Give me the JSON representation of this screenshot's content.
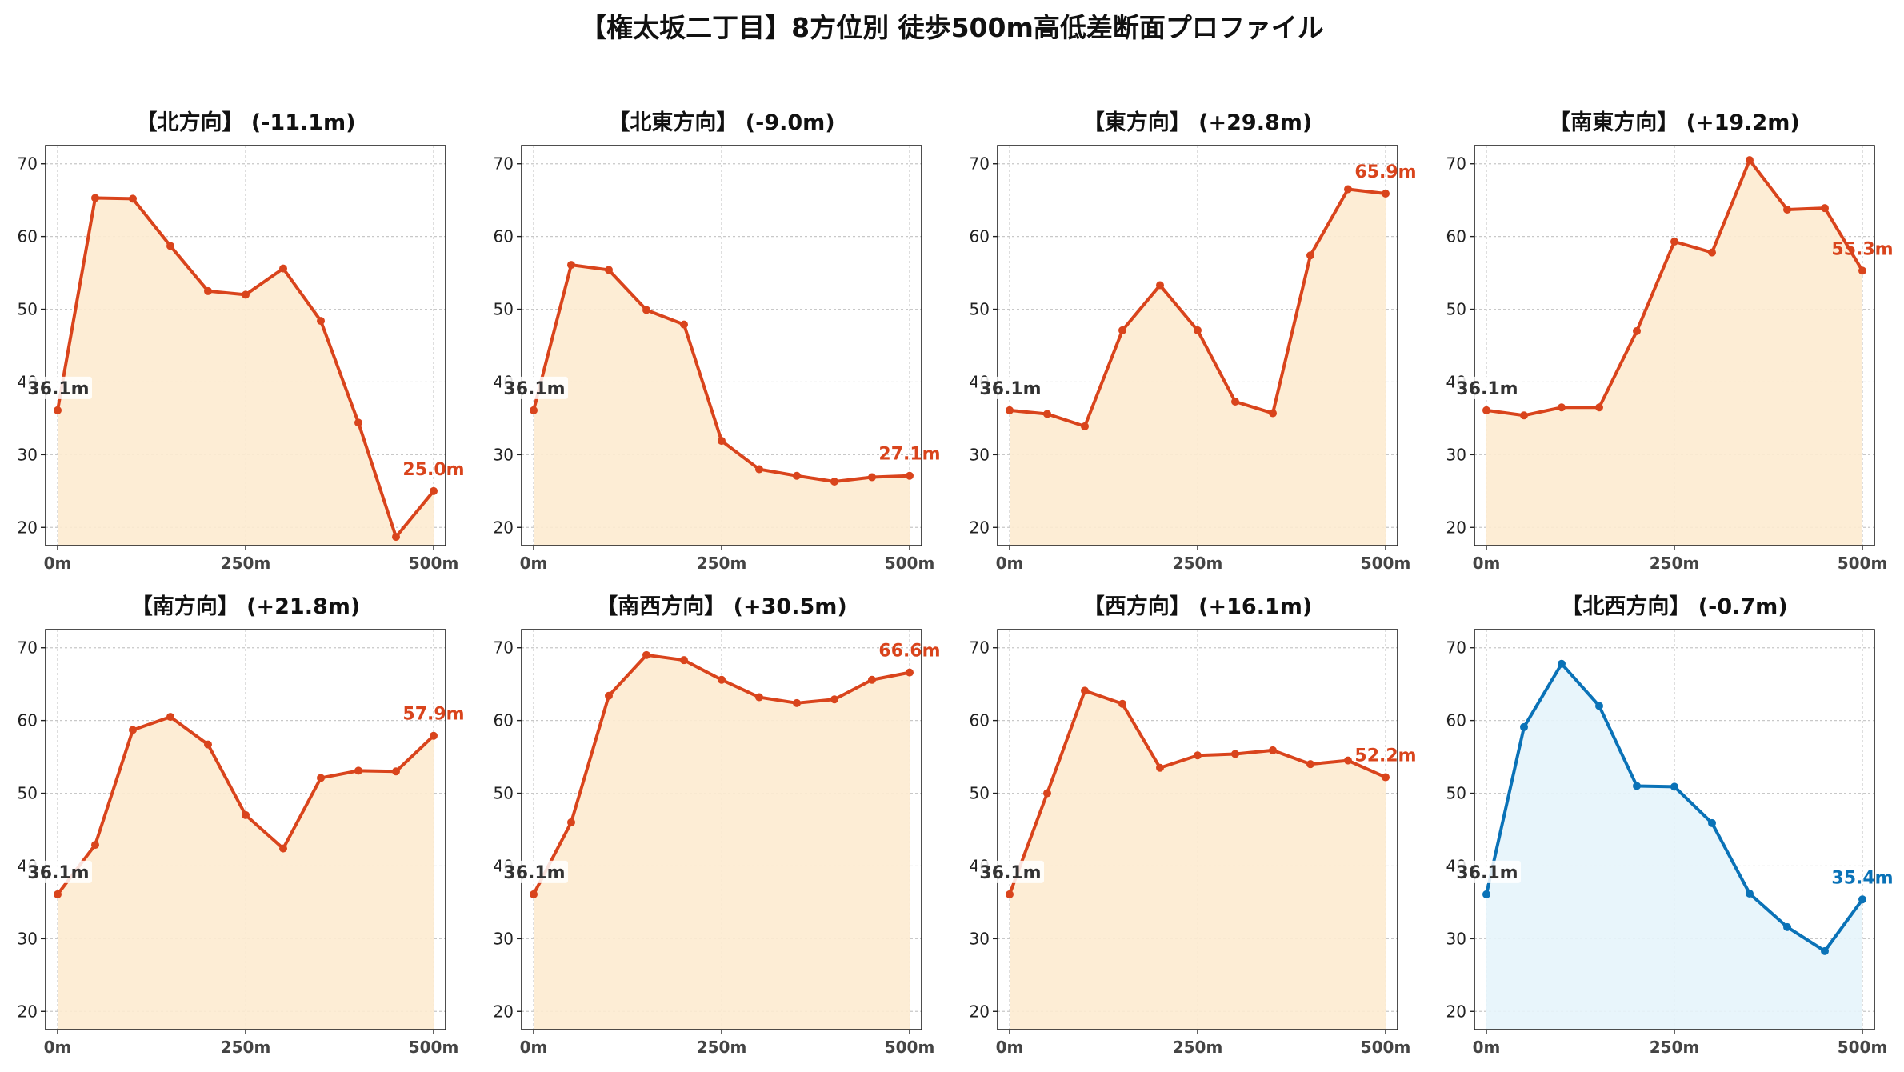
{
  "title": "【権太坂二丁目】8方位別 徒歩500m高低差断面プロファイル",
  "colors": {
    "descent_line": "#d9441c",
    "descent_fill": "#fdebd0",
    "ascent_line": "#0a72b7",
    "ascent_fill": "#e6f4fb",
    "start_label": "#333333",
    "grid": "#c8c8c8",
    "axis": "#222222"
  },
  "chart_data": [
    {
      "type": "area",
      "title": "【北方向】 (-11.1m)",
      "x": [
        0,
        50,
        100,
        150,
        200,
        250,
        300,
        350,
        400,
        450,
        500
      ],
      "y": [
        36.1,
        65.3,
        65.2,
        58.7,
        52.5,
        52.0,
        55.6,
        48.4,
        34.4,
        18.7,
        25.0
      ],
      "xticks": [
        "0m",
        "250m",
        "500m"
      ],
      "yticks": [
        "20",
        "30",
        "40",
        "50",
        "60",
        "70"
      ],
      "xlim": [
        0,
        500
      ],
      "ylim": [
        17.5,
        72.5
      ],
      "start_label": "36.1m",
      "end_label": "25.0m",
      "style": "orange",
      "grid": true
    },
    {
      "type": "area",
      "title": "【北東方向】 (-9.0m)",
      "x": [
        0,
        50,
        100,
        150,
        200,
        250,
        300,
        350,
        400,
        450,
        500
      ],
      "y": [
        36.1,
        56.1,
        55.4,
        49.9,
        47.9,
        31.9,
        28.0,
        27.1,
        26.3,
        26.9,
        27.1
      ],
      "xticks": [
        "0m",
        "250m",
        "500m"
      ],
      "yticks": [
        "20",
        "30",
        "40",
        "50",
        "60",
        "70"
      ],
      "xlim": [
        0,
        500
      ],
      "ylim": [
        17.5,
        72.5
      ],
      "start_label": "36.1m",
      "end_label": "27.1m",
      "style": "orange",
      "grid": true
    },
    {
      "type": "area",
      "title": "【東方向】 (+29.8m)",
      "x": [
        0,
        50,
        100,
        150,
        200,
        250,
        300,
        350,
        400,
        450,
        500
      ],
      "y": [
        36.1,
        35.6,
        33.9,
        47.1,
        53.3,
        47.1,
        37.3,
        35.7,
        57.4,
        66.5,
        65.9
      ],
      "xticks": [
        "0m",
        "250m",
        "500m"
      ],
      "yticks": [
        "20",
        "30",
        "40",
        "50",
        "60",
        "70"
      ],
      "xlim": [
        0,
        500
      ],
      "ylim": [
        17.5,
        72.5
      ],
      "start_label": "36.1m",
      "end_label": "65.9m",
      "style": "orange",
      "grid": true
    },
    {
      "type": "area",
      "title": "【南東方向】 (+19.2m)",
      "x": [
        0,
        50,
        100,
        150,
        200,
        250,
        300,
        350,
        400,
        450,
        500
      ],
      "y": [
        36.1,
        35.4,
        36.5,
        36.5,
        47.0,
        59.3,
        57.8,
        70.5,
        63.7,
        63.9,
        55.3
      ],
      "xticks": [
        "0m",
        "250m",
        "500m"
      ],
      "yticks": [
        "20",
        "30",
        "40",
        "50",
        "60",
        "70"
      ],
      "xlim": [
        0,
        500
      ],
      "ylim": [
        17.5,
        72.5
      ],
      "start_label": "36.1m",
      "end_label": "55.3m",
      "style": "orange",
      "grid": true
    },
    {
      "type": "area",
      "title": "【南方向】 (+21.8m)",
      "x": [
        0,
        50,
        100,
        150,
        200,
        250,
        300,
        350,
        400,
        450,
        500
      ],
      "y": [
        36.1,
        42.9,
        58.7,
        60.5,
        56.7,
        47.0,
        42.4,
        52.1,
        53.1,
        53.0,
        57.9
      ],
      "xticks": [
        "0m",
        "250m",
        "500m"
      ],
      "yticks": [
        "20",
        "30",
        "40",
        "50",
        "60",
        "70"
      ],
      "xlim": [
        0,
        500
      ],
      "ylim": [
        17.5,
        72.5
      ],
      "start_label": "36.1m",
      "end_label": "57.9m",
      "style": "orange",
      "grid": true
    },
    {
      "type": "area",
      "title": "【南西方向】 (+30.5m)",
      "x": [
        0,
        50,
        100,
        150,
        200,
        250,
        300,
        350,
        400,
        450,
        500
      ],
      "y": [
        36.1,
        46.0,
        63.4,
        69.0,
        68.3,
        65.6,
        63.2,
        62.4,
        62.9,
        65.6,
        66.6
      ],
      "xticks": [
        "0m",
        "250m",
        "500m"
      ],
      "yticks": [
        "20",
        "30",
        "40",
        "50",
        "60",
        "70"
      ],
      "xlim": [
        0,
        500
      ],
      "ylim": [
        17.5,
        72.5
      ],
      "start_label": "36.1m",
      "end_label": "66.6m",
      "style": "orange",
      "grid": true
    },
    {
      "type": "area",
      "title": "【西方向】 (+16.1m)",
      "x": [
        0,
        50,
        100,
        150,
        200,
        250,
        300,
        350,
        400,
        450,
        500
      ],
      "y": [
        36.1,
        50.0,
        64.1,
        62.3,
        53.5,
        55.2,
        55.4,
        55.9,
        54.0,
        54.5,
        52.2
      ],
      "xticks": [
        "0m",
        "250m",
        "500m"
      ],
      "yticks": [
        "20",
        "30",
        "40",
        "50",
        "60",
        "70"
      ],
      "xlim": [
        0,
        500
      ],
      "ylim": [
        17.5,
        72.5
      ],
      "start_label": "36.1m",
      "end_label": "52.2m",
      "style": "orange",
      "grid": true
    },
    {
      "type": "area",
      "title": "【北西方向】 (-0.7m)",
      "x": [
        0,
        50,
        100,
        150,
        200,
        250,
        300,
        350,
        400,
        450,
        500
      ],
      "y": [
        36.1,
        59.1,
        67.8,
        62.0,
        51.0,
        50.9,
        45.9,
        36.2,
        31.6,
        28.3,
        35.4
      ],
      "xticks": [
        "0m",
        "250m",
        "500m"
      ],
      "yticks": [
        "20",
        "30",
        "40",
        "50",
        "60",
        "70"
      ],
      "xlim": [
        0,
        500
      ],
      "ylim": [
        17.5,
        72.5
      ],
      "start_label": "36.1m",
      "end_label": "35.4m",
      "style": "blue",
      "grid": true
    }
  ]
}
